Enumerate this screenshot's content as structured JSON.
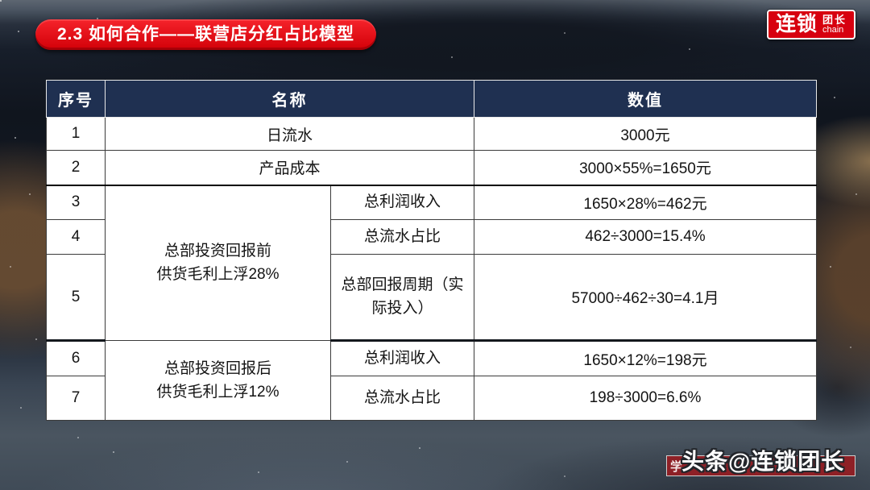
{
  "colors": {
    "accent_red": "#d7000f",
    "header_navy": "#1f3051",
    "banner_red": "#8e2026",
    "cell_bg": "#ffffff"
  },
  "header": {
    "badge_title": "2.3 如何合作——联营店分红占比模型",
    "logo": {
      "primary": "连锁",
      "secondary": "团长",
      "subtext": "chain"
    }
  },
  "table": {
    "columns": {
      "index": "序号",
      "name": "名称",
      "value": "数值"
    },
    "rows": [
      {
        "no": "1",
        "name": "日流水",
        "value": "3000元"
      },
      {
        "no": "2",
        "name": "产品成本",
        "value": "3000×55%=1650元"
      },
      {
        "no": "3",
        "name": "总利润收入",
        "value": "1650×28%=462元"
      },
      {
        "no": "4",
        "name": "总流水占比",
        "value": "462÷3000=15.4%"
      },
      {
        "no": "5",
        "name": "总部回报周期（实际投入）",
        "value": "57000÷462÷30=4.1月"
      },
      {
        "no": "6",
        "name": "总利润收入",
        "value": "1650×12%=198元"
      },
      {
        "no": "7",
        "name": "总流水占比",
        "value": "198÷3000=6.6%"
      }
    ],
    "groups": [
      {
        "line1": "总部投资回报前",
        "line2": "供货毛利上浮28%"
      },
      {
        "line1": "总部投资回报后",
        "line2": "供货毛利上浮12%"
      }
    ]
  },
  "footer": {
    "watermark": "头条@连锁团长",
    "banner_fragment": "学"
  }
}
